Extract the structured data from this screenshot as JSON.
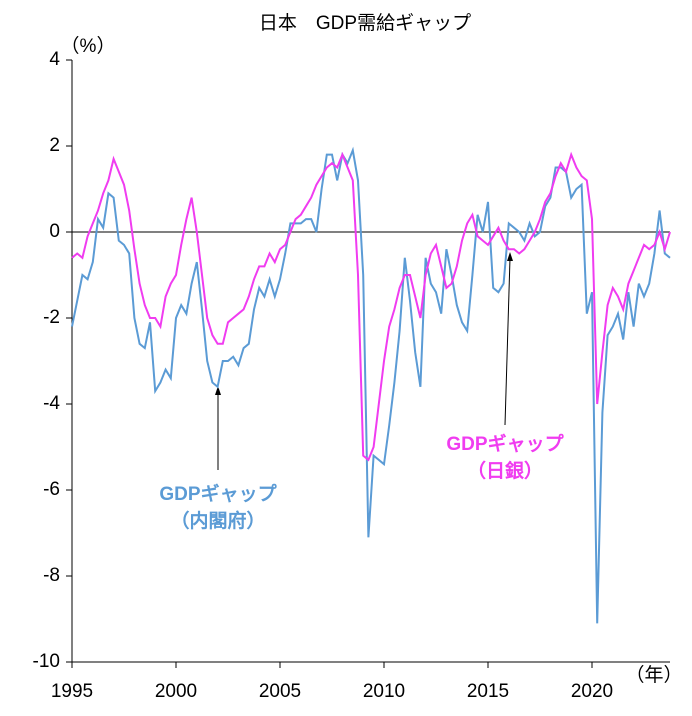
{
  "chart_data": {
    "type": "line",
    "title": "日本　GDP需給ギャップ",
    "y_unit": "（%）",
    "x_unit": "（年）",
    "x": [
      1995,
      1995.25,
      1995.5,
      1995.75,
      1996,
      1996.25,
      1996.5,
      1996.75,
      1997,
      1997.25,
      1997.5,
      1997.75,
      1998,
      1998.25,
      1998.5,
      1998.75,
      1999,
      1999.25,
      1999.5,
      1999.75,
      2000,
      2000.25,
      2000.5,
      2000.75,
      2001,
      2001.25,
      2001.5,
      2001.75,
      2002,
      2002.25,
      2002.5,
      2002.75,
      2003,
      2003.25,
      2003.5,
      2003.75,
      2004,
      2004.25,
      2004.5,
      2004.75,
      2005,
      2005.25,
      2005.5,
      2005.75,
      2006,
      2006.25,
      2006.5,
      2006.75,
      2007,
      2007.25,
      2007.5,
      2007.75,
      2008,
      2008.25,
      2008.5,
      2008.75,
      2009,
      2009.25,
      2009.5,
      2009.75,
      2010,
      2010.25,
      2010.5,
      2010.75,
      2011,
      2011.25,
      2011.5,
      2011.75,
      2012,
      2012.25,
      2012.5,
      2012.75,
      2013,
      2013.25,
      2013.5,
      2013.75,
      2014,
      2014.25,
      2014.5,
      2014.75,
      2015,
      2015.25,
      2015.5,
      2015.75,
      2016,
      2016.25,
      2016.5,
      2016.75,
      2017,
      2017.25,
      2017.5,
      2017.75,
      2018,
      2018.25,
      2018.5,
      2018.75,
      2019,
      2019.25,
      2019.5,
      2019.75,
      2020,
      2020.25,
      2020.5,
      2020.75,
      2021,
      2021.25,
      2021.5,
      2021.75,
      2022,
      2022.25,
      2022.5,
      2022.75,
      2023,
      2023.25,
      2023.5,
      2023.75
    ],
    "series": [
      {
        "name": "GDPギャップ（内閣府）",
        "color": "#5b9bd5",
        "values": [
          -2.2,
          -1.6,
          -1.0,
          -1.1,
          -0.7,
          0.3,
          0.1,
          0.9,
          0.8,
          -0.2,
          -0.3,
          -0.5,
          -2.0,
          -2.6,
          -2.7,
          -2.1,
          -3.7,
          -3.5,
          -3.2,
          -3.4,
          -2.0,
          -1.7,
          -1.9,
          -1.2,
          -0.7,
          -1.8,
          -3.0,
          -3.5,
          -3.6,
          -3.0,
          -3.0,
          -2.9,
          -3.1,
          -2.7,
          -2.6,
          -1.8,
          -1.3,
          -1.5,
          -1.1,
          -1.5,
          -1.1,
          -0.5,
          0.2,
          0.2,
          0.2,
          0.3,
          0.3,
          0.0,
          1.0,
          1.8,
          1.8,
          1.2,
          1.8,
          1.6,
          1.9,
          1.2,
          -1.0,
          -7.1,
          -5.2,
          -5.3,
          -5.4,
          -4.5,
          -3.5,
          -2.3,
          -0.6,
          -1.6,
          -2.8,
          -3.6,
          -0.6,
          -1.2,
          -1.4,
          -1.9,
          -0.4,
          -1.0,
          -1.7,
          -2.1,
          -2.3,
          -1.0,
          0.4,
          0.0,
          0.7,
          -1.3,
          -1.4,
          -1.2,
          0.2,
          0.1,
          0.0,
          -0.2,
          0.2,
          -0.1,
          0.0,
          0.6,
          0.8,
          1.5,
          1.5,
          1.4,
          0.8,
          1.0,
          1.1,
          -1.9,
          -1.4,
          -9.1,
          -4.2,
          -2.4,
          -2.2,
          -1.9,
          -2.5,
          -1.4,
          -2.2,
          -1.2,
          -1.5,
          -1.2,
          -0.5,
          0.5,
          -0.5,
          -0.6
        ]
      },
      {
        "name": "GDPギャップ（日銀）",
        "color": "#f03cf0",
        "values": [
          -0.6,
          -0.5,
          -0.6,
          -0.1,
          0.2,
          0.5,
          0.9,
          1.2,
          1.7,
          1.4,
          1.1,
          0.5,
          -0.4,
          -1.2,
          -1.7,
          -2.0,
          -2.0,
          -2.2,
          -1.5,
          -1.2,
          -1.0,
          -0.3,
          0.3,
          0.8,
          0.0,
          -1.0,
          -2.0,
          -2.4,
          -2.6,
          -2.6,
          -2.1,
          -2.0,
          -1.9,
          -1.8,
          -1.5,
          -1.1,
          -0.8,
          -0.8,
          -0.5,
          -0.7,
          -0.4,
          -0.3,
          0.0,
          0.3,
          0.4,
          0.6,
          0.8,
          1.1,
          1.3,
          1.5,
          1.6,
          1.5,
          1.8,
          1.5,
          1.2,
          -1.0,
          -5.2,
          -5.3,
          -5.0,
          -4.0,
          -3.0,
          -2.2,
          -1.8,
          -1.3,
          -1.0,
          -1.0,
          -1.5,
          -2.0,
          -1.0,
          -0.5,
          -0.3,
          -0.8,
          -1.3,
          -1.2,
          -0.8,
          -0.2,
          0.2,
          0.4,
          -0.1,
          -0.2,
          -0.3,
          -0.1,
          0.1,
          -0.2,
          -0.4,
          -0.4,
          -0.5,
          -0.4,
          -0.2,
          0.0,
          0.3,
          0.7,
          0.9,
          1.3,
          1.6,
          1.4,
          1.8,
          1.5,
          1.3,
          1.2,
          0.3,
          -4.0,
          -2.8,
          -1.7,
          -1.3,
          -1.5,
          -1.8,
          -1.2,
          -0.9,
          -0.6,
          -0.3,
          -0.4,
          -0.3,
          0.0,
          -0.4,
          0.0
        ]
      }
    ],
    "annotations": [
      [
        "GDPギャップ",
        "（内閣府）"
      ],
      [
        "GDPギャップ",
        "（日銀）"
      ]
    ],
    "xlim": [
      1995,
      2023.75
    ],
    "xticks": [
      1995,
      2000,
      2005,
      2010,
      2015,
      2020
    ],
    "ylim": [
      -10,
      4
    ],
    "yticks": [
      4,
      2,
      0,
      -2,
      -4,
      -6,
      -8,
      -10
    ]
  }
}
